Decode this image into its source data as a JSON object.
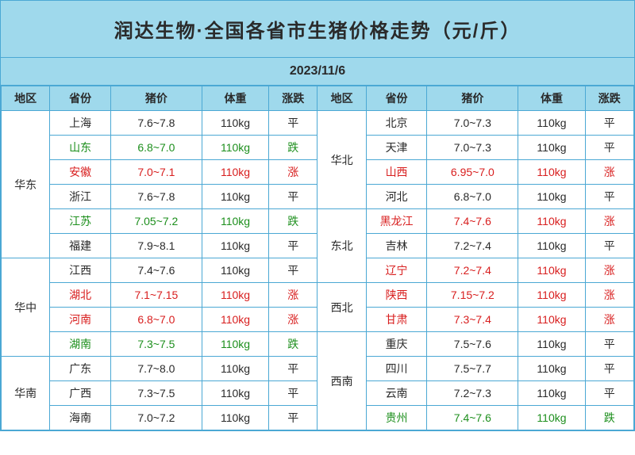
{
  "title": "润达生物·全国各省市生猪价格走势（元/斤）",
  "date": "2023/11/6",
  "columns": [
    "地区",
    "省份",
    "猪价",
    "体重",
    "涨跌",
    "地区",
    "省份",
    "猪价",
    "体重",
    "涨跌"
  ],
  "colors": {
    "header_bg": "#9fd9ec",
    "border": "#4ba8d4",
    "cell_bg": "#ffffff",
    "text_black": "#2a2a2a",
    "text_red": "#d81e1e",
    "text_green": "#1d8f1d"
  },
  "font_sizes": {
    "title": 24,
    "date": 16,
    "cell": 14
  },
  "left_groups": [
    {
      "region": "华东",
      "rows": [
        {
          "prov": "上海",
          "price": "7.6~7.8",
          "weight": "110kg",
          "trend": "平",
          "color": "black"
        },
        {
          "prov": "山东",
          "price": "6.8~7.0",
          "weight": "110kg",
          "trend": "跌",
          "color": "green"
        },
        {
          "prov": "安徽",
          "price": "7.0~7.1",
          "weight": "110kg",
          "trend": "涨",
          "color": "red"
        },
        {
          "prov": "浙江",
          "price": "7.6~7.8",
          "weight": "110kg",
          "trend": "平",
          "color": "black"
        },
        {
          "prov": "江苏",
          "price": "7.05~7.2",
          "weight": "110kg",
          "trend": "跌",
          "color": "green"
        },
        {
          "prov": "福建",
          "price": "7.9~8.1",
          "weight": "110kg",
          "trend": "平",
          "color": "black"
        }
      ]
    },
    {
      "region": "华中",
      "rows": [
        {
          "prov": "江西",
          "price": "7.4~7.6",
          "weight": "110kg",
          "trend": "平",
          "color": "black"
        },
        {
          "prov": "湖北",
          "price": "7.1~7.15",
          "weight": "110kg",
          "trend": "涨",
          "color": "red"
        },
        {
          "prov": "河南",
          "price": "6.8~7.0",
          "weight": "110kg",
          "trend": "涨",
          "color": "red"
        },
        {
          "prov": "湖南",
          "price": "7.3~7.5",
          "weight": "110kg",
          "trend": "跌",
          "color": "green"
        }
      ]
    },
    {
      "region": "华南",
      "rows": [
        {
          "prov": "广东",
          "price": "7.7~8.0",
          "weight": "110kg",
          "trend": "平",
          "color": "black"
        },
        {
          "prov": "广西",
          "price": "7.3~7.5",
          "weight": "110kg",
          "trend": "平",
          "color": "black"
        },
        {
          "prov": "海南",
          "price": "7.0~7.2",
          "weight": "110kg",
          "trend": "平",
          "color": "black"
        }
      ]
    }
  ],
  "right_groups": [
    {
      "region": "华北",
      "rows": [
        {
          "prov": "北京",
          "price": "7.0~7.3",
          "weight": "110kg",
          "trend": "平",
          "color": "black"
        },
        {
          "prov": "天津",
          "price": "7.0~7.3",
          "weight": "110kg",
          "trend": "平",
          "color": "black"
        },
        {
          "prov": "山西",
          "price": "6.95~7.0",
          "weight": "110kg",
          "trend": "涨",
          "color": "red"
        },
        {
          "prov": "河北",
          "price": "6.8~7.0",
          "weight": "110kg",
          "trend": "平",
          "color": "black"
        }
      ]
    },
    {
      "region": "东北",
      "rows": [
        {
          "prov": "黑龙江",
          "price": "7.4~7.6",
          "weight": "110kg",
          "trend": "涨",
          "color": "red"
        },
        {
          "prov": "吉林",
          "price": "7.2~7.4",
          "weight": "110kg",
          "trend": "平",
          "color": "black"
        },
        {
          "prov": "辽宁",
          "price": "7.2~7.4",
          "weight": "110kg",
          "trend": "涨",
          "color": "red"
        }
      ]
    },
    {
      "region": "西北",
      "rows": [
        {
          "prov": "陕西",
          "price": "7.15~7.2",
          "weight": "110kg",
          "trend": "涨",
          "color": "red"
        },
        {
          "prov": "甘肃",
          "price": "7.3~7.4",
          "weight": "110kg",
          "trend": "涨",
          "color": "red"
        }
      ]
    },
    {
      "region": "西南",
      "rows": [
        {
          "prov": "重庆",
          "price": "7.5~7.6",
          "weight": "110kg",
          "trend": "平",
          "color": "black"
        },
        {
          "prov": "四川",
          "price": "7.5~7.7",
          "weight": "110kg",
          "trend": "平",
          "color": "black"
        },
        {
          "prov": "云南",
          "price": "7.2~7.3",
          "weight": "110kg",
          "trend": "平",
          "color": "black"
        },
        {
          "prov": "贵州",
          "price": "7.4~7.6",
          "weight": "110kg",
          "trend": "跌",
          "color": "green"
        }
      ]
    }
  ]
}
